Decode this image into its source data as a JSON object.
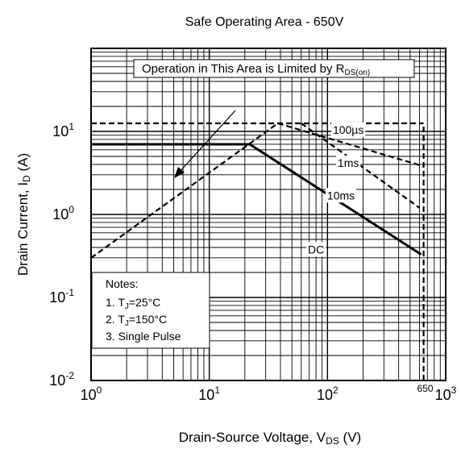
{
  "chart_data": {
    "type": "line",
    "title": "Safe Operating Area - 650V",
    "xlabel": {
      "main": "Drain-Source Voltage, V",
      "sub": "DS",
      "unit": " (V)"
    },
    "ylabel": {
      "main": "Drain Current, I",
      "sub": "D",
      "unit": " (A)"
    },
    "x_scale": "log",
    "y_scale": "log",
    "xlim": [
      1,
      1000
    ],
    "ylim": [
      0.01,
      100
    ],
    "grid": true,
    "x_ticks": [
      {
        "value": 1,
        "base": "10",
        "exp": "0"
      },
      {
        "value": 10,
        "base": "10",
        "exp": "1"
      },
      {
        "value": 100,
        "base": "10",
        "exp": "2"
      },
      {
        "value": 1000,
        "base": "10",
        "exp": "3"
      }
    ],
    "y_ticks": [
      {
        "value": 0.01,
        "base": "10",
        "exp": "-2"
      },
      {
        "value": 0.1,
        "base": "10",
        "exp": "-1"
      },
      {
        "value": 1,
        "base": "10",
        "exp": "0"
      },
      {
        "value": 10,
        "base": "10",
        "exp": "1"
      }
    ],
    "series": [
      {
        "name": "100µs",
        "style": "dashed",
        "color": "#000000",
        "points": [
          [
            1,
            12.5
          ],
          [
            650,
            12.5
          ]
        ]
      },
      {
        "name": "1ms",
        "style": "dashed",
        "color": "#000000",
        "points": [
          [
            38,
            12.5
          ],
          [
            650,
            3.8
          ]
        ]
      },
      {
        "name": "10ms",
        "style": "dashed",
        "color": "#000000",
        "points": [
          [
            60,
            12.5
          ],
          [
            120,
            6.2
          ],
          [
            600,
            1.2
          ]
        ]
      },
      {
        "name": "DC",
        "style": "solid",
        "color": "#000000",
        "points": [
          [
            1,
            7
          ],
          [
            22,
            7
          ],
          [
            620,
            0.33
          ]
        ]
      },
      {
        "name": "",
        "style": "dashed",
        "color": "#000000",
        "points": [
          [
            1,
            0.3
          ],
          [
            38,
            12.5
          ]
        ]
      },
      {
        "name": "",
        "style": "dashed",
        "color": "#000000",
        "points": [
          [
            650,
            0.01
          ],
          [
            650,
            12.5
          ]
        ]
      }
    ],
    "series_labels": [
      {
        "series": "100µs",
        "text": "100µs",
        "x": 150,
        "y": 10.5
      },
      {
        "series": "1ms",
        "text": "1ms",
        "x": 150,
        "y": 4.2
      },
      {
        "series": "10ms",
        "text": "10ms",
        "x": 130,
        "y": 1.7
      },
      {
        "series": "DC",
        "text": "DC",
        "x": 80,
        "y": 0.38
      }
    ],
    "annotations": {
      "top_note": {
        "main": "Operation in This Area is Limited by R",
        "sub": "DS(on)"
      },
      "x_marker": {
        "text": "650",
        "value": 650
      },
      "notes_title": "Notes:",
      "notes": [
        {
          "prefix": "1.  T",
          "sub": "J",
          "suffix": "=25°C"
        },
        {
          "prefix": "2.  T",
          "sub": "J",
          "suffix": "=150°C"
        },
        {
          "prefix": "3. Single Pulse",
          "sub": "",
          "suffix": ""
        }
      ]
    }
  }
}
